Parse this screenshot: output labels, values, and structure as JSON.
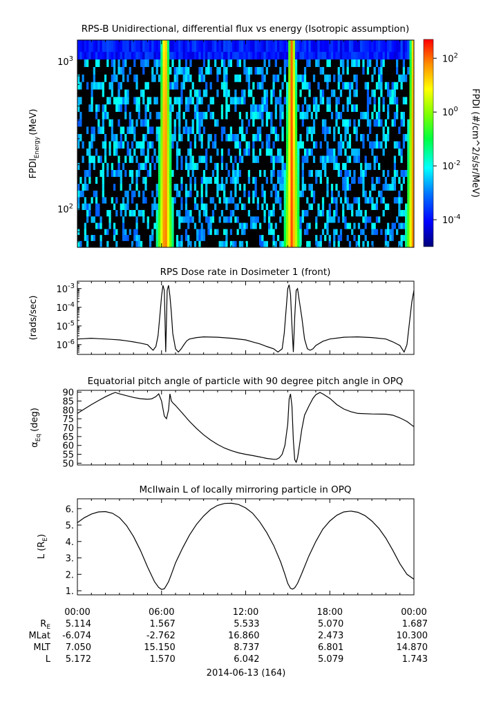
{
  "chart_data": [
    {
      "type": "heatmap",
      "title": "RPS-B  Unidirectional, differential flux vs energy (Isotropic assumption)",
      "ylabel": "FPDI",
      "ylabel_sub": "Energy",
      "ylabel_unit": "(MeV)",
      "y_scale": "log",
      "ylim": [
        55,
        1400
      ],
      "y_ticks": [
        {
          "value": 100,
          "base": "10",
          "exp": "2"
        },
        {
          "value": 1000,
          "base": "10",
          "exp": "3"
        }
      ],
      "energy_channels_mev": [
        58,
        64,
        70,
        77,
        85,
        94,
        104,
        115,
        127,
        141,
        157,
        175,
        195,
        218,
        244,
        273,
        306,
        343,
        385,
        432,
        485,
        545,
        612,
        688,
        773,
        870,
        978,
        1100,
        1240
      ],
      "xlim": [
        0,
        24
      ],
      "bright_bands_hours": [
        {
          "start": 5.7,
          "end": 6.9,
          "peak": 6.25
        },
        {
          "start": 14.8,
          "end": 16.0,
          "peak": 15.3
        },
        {
          "start": 23.3,
          "end": 24.0,
          "peak": 24.0
        }
      ],
      "colorbar": {
        "label": "FPDI (#/cm^2/s/sr/MeV)",
        "scale": "log",
        "range": [
          -5,
          2.7
        ],
        "ticks": [
          {
            "value": -4,
            "base": "10",
            "exp": "-4"
          },
          {
            "value": -2,
            "base": "10",
            "exp": "-2"
          },
          {
            "value": 0,
            "base": "10",
            "exp": "0"
          },
          {
            "value": 2,
            "base": "10",
            "exp": "2"
          }
        ]
      }
    },
    {
      "type": "line",
      "title": "RPS  Dose rate in Dosimeter 1 (front)",
      "ylabel": "(rads/sec)",
      "y_scale": "log",
      "ylim": [
        3e-07,
        0.0025
      ],
      "y_ticks": [
        {
          "value": 1e-06,
          "base": "10",
          "exp": "-6"
        },
        {
          "value": 1e-05,
          "base": "10",
          "exp": "-5"
        },
        {
          "value": 0.0001,
          "base": "10",
          "exp": "-4"
        },
        {
          "value": 0.001,
          "base": "10",
          "exp": "-3"
        }
      ],
      "xlim": [
        0,
        24
      ],
      "series": [
        {
          "x": [
            0,
            0.5,
            1,
            1.5,
            2,
            2.5,
            3,
            3.5,
            4,
            4.5,
            5,
            5.2,
            5.4,
            5.6,
            5.75,
            5.9,
            6.0,
            6.1,
            6.2,
            6.25,
            6.3,
            6.35,
            6.4,
            6.5,
            6.6,
            6.7,
            6.8,
            7.0,
            7.2,
            7.4,
            7.6,
            7.8,
            8.0,
            8.5,
            9,
            10,
            11,
            12,
            12.5,
            13,
            13.5,
            14,
            14.3,
            14.6,
            14.75,
            14.9,
            15.0,
            15.1,
            15.2,
            15.3,
            15.4,
            15.5,
            15.6,
            15.7,
            15.8,
            16.0,
            16.2,
            16.4,
            16.6,
            16.8,
            17.0,
            17.5,
            18,
            19,
            20,
            21,
            22,
            22.5,
            23,
            23.3,
            23.5,
            23.7,
            23.85,
            24.0
          ],
          "y": [
            2e-06,
            2.1e-06,
            2.2e-06,
            2.1e-06,
            2e-06,
            1.9e-06,
            1.8e-06,
            1.6e-06,
            1.4e-06,
            1.2e-06,
            1e-06,
            7e-07,
            5e-07,
            8e-07,
            3e-06,
            5e-05,
            0.0004,
            0.0015,
            0.0008,
            2e-05,
            4e-07,
            2e-05,
            0.0008,
            0.0015,
            0.0004,
            5e-05,
            4e-06,
            6e-07,
            4e-07,
            6e-07,
            1e-06,
            1.6e-06,
            2e-06,
            2.4e-06,
            2.6e-06,
            2.5e-06,
            2.2e-06,
            1.8e-06,
            1.4e-06,
            1.1e-06,
            8e-07,
            6e-07,
            4e-07,
            6e-07,
            4e-06,
            0.0001,
            0.001,
            0.0016,
            0.0005,
            1e-05,
            4e-07,
            3e-05,
            0.0008,
            0.001,
            0.0003,
            3e-05,
            2e-06,
            6e-07,
            5e-07,
            6e-07,
            9e-07,
            1.5e-06,
            2e-06,
            2.5e-06,
            2.6e-06,
            2.4e-06,
            2e-06,
            1.4e-06,
            9e-07,
            4e-07,
            1e-06,
            2e-05,
            0.0002,
            0.0008
          ]
        }
      ]
    },
    {
      "type": "line",
      "title": "Equatorial pitch angle of particle with 90 degree pitch angle in OPQ",
      "ylabel": "α",
      "ylabel_sub": "Eq",
      "ylabel_unit": "(deg)",
      "ylim": [
        49,
        91
      ],
      "y_ticks": [
        50,
        55,
        60,
        65,
        70,
        75,
        80,
        85,
        90
      ],
      "xlim": [
        0,
        24
      ],
      "series": [
        {
          "x": [
            0,
            0.5,
            1,
            1.5,
            2,
            2.5,
            2.7,
            3,
            3.5,
            4,
            4.5,
            5,
            5.3,
            5.6,
            5.8,
            6.0,
            6.2,
            6.35,
            6.5,
            6.6,
            6.7,
            6.8,
            7.0,
            7.5,
            8,
            8.5,
            9,
            9.5,
            10,
            10.5,
            11,
            11.5,
            12,
            12.5,
            13,
            13.5,
            14,
            14.2,
            14.4,
            14.6,
            14.8,
            15.0,
            15.1,
            15.2,
            15.3,
            15.4,
            15.5,
            15.6,
            15.7,
            15.8,
            16.0,
            16.2,
            16.5,
            16.8,
            17.0,
            17.3,
            17.5,
            18,
            18.5,
            19,
            19.5,
            20,
            21,
            22,
            22.5,
            23,
            23.5,
            24
          ],
          "y": [
            78,
            80.5,
            83,
            85.2,
            87.4,
            89.2,
            89.8,
            89,
            88,
            87,
            86.3,
            86,
            86.2,
            87.5,
            89,
            85,
            76.5,
            75,
            80,
            89,
            85,
            84,
            82.5,
            78,
            73.5,
            69.5,
            66,
            63,
            60.5,
            58.5,
            57,
            55.8,
            55,
            54.3,
            53.5,
            52.7,
            52.2,
            52.2,
            53,
            55,
            60,
            72,
            86,
            89,
            82,
            63,
            52,
            50.5,
            53,
            58,
            69,
            77,
            82,
            86.5,
            88.5,
            89.8,
            89,
            86.5,
            83,
            80.5,
            79,
            78,
            77.7,
            77.6,
            77,
            75.5,
            73.5,
            70.5
          ]
        }
      ]
    },
    {
      "type": "line",
      "title": "McIlwain L of locally mirroring particle in OPQ",
      "ylabel": "L (R",
      "ylabel_sub": "E",
      "ylabel_unit": ")",
      "ylim": [
        0.75,
        6.6
      ],
      "y_ticks": [
        1,
        2,
        3,
        4,
        5,
        6
      ],
      "y_tick_labels": [
        "1.",
        "2.",
        "3.",
        "4.",
        "5.",
        "6."
      ],
      "xlim": [
        0,
        24
      ],
      "series": [
        {
          "x": [
            0,
            0.5,
            1,
            1.5,
            2,
            2.5,
            3,
            3.5,
            4,
            4.5,
            5,
            5.5,
            5.8,
            6.0,
            6.2,
            6.3,
            6.5,
            6.7,
            7,
            7.5,
            8,
            8.5,
            9,
            9.5,
            10,
            10.5,
            11,
            11.5,
            12,
            12.5,
            13,
            13.5,
            14,
            14.5,
            14.8,
            15.0,
            15.2,
            15.35,
            15.5,
            15.7,
            16,
            16.5,
            17,
            17.5,
            18,
            18.5,
            19,
            19.5,
            20,
            20.5,
            21,
            21.5,
            22,
            22.5,
            23,
            23.5,
            24
          ],
          "y": [
            5.15,
            5.45,
            5.67,
            5.8,
            5.82,
            5.72,
            5.45,
            4.98,
            4.3,
            3.45,
            2.45,
            1.55,
            1.2,
            1.08,
            1.12,
            1.25,
            1.55,
            2.0,
            2.7,
            3.6,
            4.4,
            5.05,
            5.55,
            5.95,
            6.2,
            6.32,
            6.33,
            6.25,
            6.05,
            5.72,
            5.2,
            4.55,
            3.75,
            2.75,
            2.0,
            1.45,
            1.15,
            1.1,
            1.18,
            1.45,
            2.05,
            3.1,
            4.0,
            4.75,
            5.25,
            5.6,
            5.8,
            5.85,
            5.78,
            5.58,
            5.25,
            4.8,
            4.2,
            3.45,
            2.65,
            2.0,
            1.7
          ]
        }
      ]
    }
  ],
  "time_axis": {
    "tick_labels": [
      "00:00",
      "06:00",
      "12:00",
      "18:00",
      "00:00"
    ],
    "date_label": "2014-06-13 (164)"
  },
  "ephemeris": {
    "rows": [
      {
        "label": "R",
        "label_sub": "E",
        "values": [
          "5.114",
          "1.567",
          "5.533",
          "5.070",
          "1.687"
        ]
      },
      {
        "label": "MLat",
        "label_sub": "",
        "values": [
          "-6.074",
          "-2.762",
          "16.860",
          "2.473",
          "10.300"
        ]
      },
      {
        "label": "MLT",
        "label_sub": "",
        "values": [
          "7.050",
          "15.150",
          "8.737",
          "6.801",
          "14.870"
        ]
      },
      {
        "label": "L",
        "label_sub": "",
        "values": [
          "5.172",
          "1.570",
          "6.042",
          "5.079",
          "1.743"
        ]
      }
    ]
  },
  "colors": {
    "line": "#000000",
    "background": "#000000"
  }
}
